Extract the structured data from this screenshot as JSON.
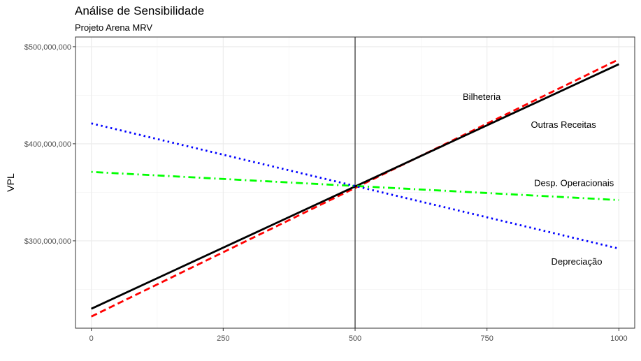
{
  "chart_data": {
    "type": "line",
    "title": "Análise de Sensibilidade",
    "subtitle": "Projeto Arena MRV",
    "xlabel": "",
    "ylabel": "VPL",
    "xlim": [
      -30,
      1030
    ],
    "ylim": [
      210000000,
      510000000
    ],
    "x_ticks": [
      0,
      250,
      500,
      750,
      1000
    ],
    "x_tick_labels": [
      "0",
      "250",
      "500",
      "750",
      "1000"
    ],
    "y_ticks": [
      300000000,
      400000000,
      500000000
    ],
    "y_tick_labels": [
      "$300,000,000",
      "$400,000,000",
      "$500,000,000"
    ],
    "vline_x": 500,
    "grid": true,
    "series": [
      {
        "name": "Bilheteria",
        "x": [
          0,
          1000
        ],
        "values": [
          222000000,
          487000000
        ],
        "color": "#ff0000",
        "dash": "dashed",
        "label_pos": [
          740,
          449000000
        ]
      },
      {
        "name": "Outras Receitas",
        "x": [
          0,
          1000
        ],
        "values": [
          230000000,
          482000000
        ],
        "color": "#000000",
        "dash": "solid",
        "label_pos": [
          895,
          420000000
        ]
      },
      {
        "name": "Desp. Operacionais",
        "x": [
          0,
          1000
        ],
        "values": [
          371000000,
          342000000
        ],
        "color": "#00ff00",
        "dash": "dotdash",
        "label_pos": [
          915,
          360000000
        ]
      },
      {
        "name": "Depreciação",
        "x": [
          0,
          1000
        ],
        "values": [
          421000000,
          292000000
        ],
        "color": "#0000ff",
        "dash": "dotted",
        "label_pos": [
          920,
          279000000
        ]
      }
    ]
  }
}
